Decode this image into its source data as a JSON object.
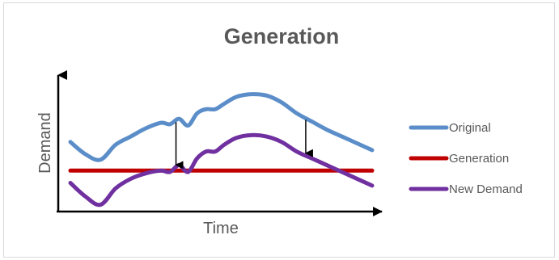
{
  "chart_data": {
    "type": "line",
    "title": "Generation",
    "xlabel": "Time",
    "ylabel": "Demand",
    "x": [
      0,
      5,
      10,
      15,
      20,
      25,
      30,
      33,
      36,
      39,
      42,
      45,
      48,
      51,
      55,
      60,
      65,
      70,
      75,
      80,
      85,
      90,
      95,
      100
    ],
    "ylim": [
      0,
      100
    ],
    "series": [
      {
        "name": "Original",
        "color": "#5b8ec9",
        "values": [
          51,
          42,
          38,
          49,
          55,
          61,
          65,
          64,
          68,
          63,
          72,
          75,
          75,
          79,
          84,
          86,
          85,
          80,
          72,
          66,
          60,
          55,
          50,
          45
        ]
      },
      {
        "name": "Generation",
        "color": "#c00000",
        "values": [
          30,
          30,
          30,
          30,
          30,
          30,
          30,
          30,
          30,
          30,
          30,
          30,
          30,
          30,
          30,
          30,
          30,
          30,
          30,
          30,
          30,
          30,
          30,
          30
        ]
      },
      {
        "name": "New Demand",
        "color": "#7030a0",
        "values": [
          21,
          11,
          5,
          17,
          24,
          28,
          30,
          29,
          34,
          29,
          39,
          44,
          44,
          49,
          54,
          56,
          55,
          51,
          44,
          39,
          34,
          29,
          24,
          19
        ]
      }
    ],
    "annotations": [
      {
        "type": "arrow-down",
        "x": 35,
        "from_series": "Original",
        "to_series": "New Demand"
      },
      {
        "type": "arrow-down",
        "x": 78,
        "from_series": "Original",
        "to_series": "New Demand"
      }
    ],
    "grid": false,
    "legend": "right"
  }
}
